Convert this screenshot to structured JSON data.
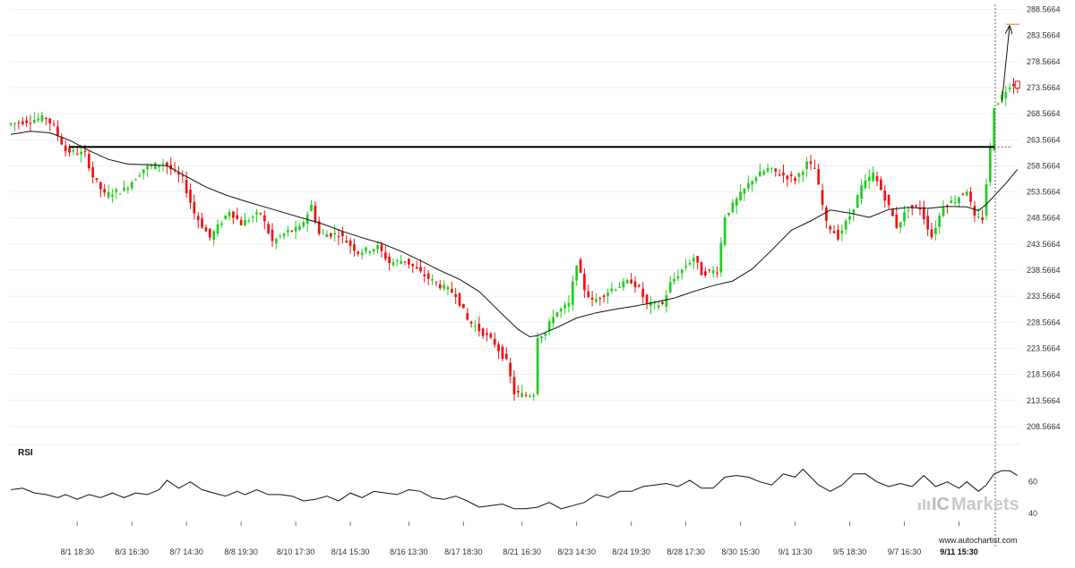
{
  "chart_data": {
    "type": "candlestick",
    "price_axis": {
      "ticks": [
        "288.5664",
        "283.5664",
        "278.5664",
        "273.5664",
        "268.5664",
        "263.5664",
        "258.5664",
        "253.5664",
        "248.5664",
        "243.5664",
        "238.5664",
        "233.5664",
        "228.5664",
        "223.5664",
        "218.5664",
        "213.5664",
        "208.5664"
      ],
      "ylim": [
        206.5,
        289.0
      ]
    },
    "rsi_axis": {
      "label": "RSI",
      "ticks": [
        "60",
        "40"
      ],
      "ylim": [
        35,
        79
      ]
    },
    "x_labels": [
      "8/1 18:30",
      "8/3 16:30",
      "8/7 14:30",
      "8/8 19:30",
      "8/10 17:30",
      "8/14 15:30",
      "8/16 13:30",
      "8/17 18:30",
      "8/21 16:30",
      "8/23 14:30",
      "8/24 19:30",
      "8/28 17:30",
      "8/30 15:30",
      "9/1 13:30",
      "9/5 18:30",
      "9/7 16:30",
      "9/11 15:30"
    ],
    "resistance_level": 262.2,
    "forecast_target": 285.7,
    "up_color": "#22cc22",
    "down_color": "#ee1111",
    "ma_path": [
      [
        0,
        264.6
      ],
      [
        5,
        265.2
      ],
      [
        10,
        264.9
      ],
      [
        15,
        263.5
      ],
      [
        20,
        261.5
      ],
      [
        25,
        259.8
      ],
      [
        30,
        258.9
      ],
      [
        35,
        258.8
      ],
      [
        40,
        258.6
      ],
      [
        45,
        256.5
      ],
      [
        50,
        254.5
      ],
      [
        55,
        253.0
      ],
      [
        60,
        251.8
      ],
      [
        65,
        250.7
      ],
      [
        70,
        249.6
      ],
      [
        75,
        248.5
      ],
      [
        80,
        247.4
      ],
      [
        85,
        246.0
      ],
      [
        90,
        244.8
      ],
      [
        95,
        243.7
      ],
      [
        100,
        242.2
      ],
      [
        105,
        240.4
      ],
      [
        110,
        238.5
      ],
      [
        115,
        236.8
      ],
      [
        120,
        234.5
      ],
      [
        125,
        230.8
      ],
      [
        130,
        227.2
      ],
      [
        133,
        225.8
      ],
      [
        135,
        226.0
      ],
      [
        140,
        227.6
      ],
      [
        145,
        229.4
      ],
      [
        150,
        230.4
      ],
      [
        155,
        231.1
      ],
      [
        160,
        231.7
      ],
      [
        165,
        232.4
      ],
      [
        170,
        233.2
      ],
      [
        175,
        234.5
      ],
      [
        180,
        235.6
      ],
      [
        185,
        236.5
      ],
      [
        190,
        238.8
      ],
      [
        195,
        242.4
      ],
      [
        200,
        246.2
      ],
      [
        205,
        248.0
      ],
      [
        210,
        250.1
      ],
      [
        215,
        249.5
      ],
      [
        220,
        248.7
      ],
      [
        225,
        250.2
      ],
      [
        230,
        250.6
      ],
      [
        235,
        250.4
      ],
      [
        240,
        250.8
      ],
      [
        245,
        250.7
      ],
      [
        248,
        250.0
      ],
      [
        250,
        251.2
      ],
      [
        255,
        255.2
      ],
      [
        258,
        257.9
      ]
    ],
    "rsi_path": [
      [
        0,
        55
      ],
      [
        3,
        56
      ],
      [
        6,
        53
      ],
      [
        9,
        52
      ],
      [
        12,
        50
      ],
      [
        14,
        52
      ],
      [
        17,
        49
      ],
      [
        20,
        52
      ],
      [
        23,
        50
      ],
      [
        26,
        53
      ],
      [
        29,
        50
      ],
      [
        32,
        53
      ],
      [
        35,
        52
      ],
      [
        38,
        55
      ],
      [
        40,
        61
      ],
      [
        43,
        56
      ],
      [
        46,
        60
      ],
      [
        49,
        55
      ],
      [
        52,
        53
      ],
      [
        55,
        51
      ],
      [
        58,
        54
      ],
      [
        60,
        52
      ],
      [
        63,
        55
      ],
      [
        66,
        52
      ],
      [
        69,
        52
      ],
      [
        72,
        51
      ],
      [
        75,
        48
      ],
      [
        78,
        49
      ],
      [
        81,
        51
      ],
      [
        84,
        48
      ],
      [
        87,
        53
      ],
      [
        90,
        50
      ],
      [
        93,
        54
      ],
      [
        96,
        53
      ],
      [
        99,
        52
      ],
      [
        102,
        55
      ],
      [
        105,
        54
      ],
      [
        108,
        50
      ],
      [
        111,
        49
      ],
      [
        114,
        51
      ],
      [
        117,
        48
      ],
      [
        120,
        44
      ],
      [
        123,
        45
      ],
      [
        126,
        46
      ],
      [
        129,
        43
      ],
      [
        132,
        43
      ],
      [
        135,
        44
      ],
      [
        138,
        47
      ],
      [
        141,
        43
      ],
      [
        144,
        45
      ],
      [
        147,
        47
      ],
      [
        150,
        52
      ],
      [
        153,
        50
      ],
      [
        156,
        54
      ],
      [
        159,
        54
      ],
      [
        162,
        57
      ],
      [
        165,
        58
      ],
      [
        168,
        59
      ],
      [
        171,
        57
      ],
      [
        174,
        61
      ],
      [
        177,
        56
      ],
      [
        180,
        56
      ],
      [
        183,
        63
      ],
      [
        186,
        64
      ],
      [
        189,
        63
      ],
      [
        192,
        60
      ],
      [
        195,
        58
      ],
      [
        198,
        65
      ],
      [
        201,
        63
      ],
      [
        203,
        68
      ],
      [
        207,
        58
      ],
      [
        210,
        54
      ],
      [
        213,
        58
      ],
      [
        216,
        65
      ],
      [
        219,
        65
      ],
      [
        222,
        60
      ],
      [
        225,
        57
      ],
      [
        228,
        59
      ],
      [
        231,
        57
      ],
      [
        234,
        64
      ],
      [
        237,
        57
      ],
      [
        240,
        60
      ],
      [
        243,
        56
      ],
      [
        245,
        60
      ],
      [
        248,
        54
      ],
      [
        250,
        58
      ],
      [
        252,
        65
      ],
      [
        254,
        67
      ],
      [
        256,
        67
      ],
      [
        258,
        64
      ]
    ]
  },
  "branding": {
    "ic": "IC",
    "name": "Markets",
    "site": "www.autochartist.com"
  }
}
